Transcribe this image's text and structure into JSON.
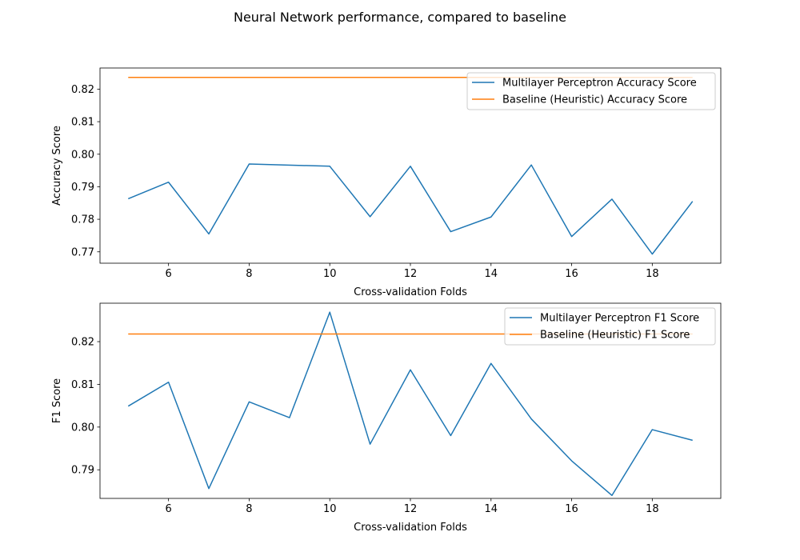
{
  "figure_title": "Neural Network performance, compared to baseline",
  "chart_data": [
    {
      "type": "line",
      "title": "",
      "xlabel": "Cross-validation Folds",
      "ylabel": "Accuracy Score",
      "xlim": [
        4.3,
        19.7
      ],
      "ylim": [
        0.7665,
        0.8265
      ],
      "xticks": [
        6,
        8,
        10,
        12,
        14,
        16,
        18
      ],
      "yticks": [
        0.77,
        0.78,
        0.79,
        0.8,
        0.81,
        0.82
      ],
      "ytick_labels": [
        "0.77",
        "0.78",
        "0.79",
        "0.80",
        "0.81",
        "0.82"
      ],
      "legend_position": "top-right",
      "grid": false,
      "x": [
        5,
        6,
        7,
        8,
        10,
        11,
        12,
        13,
        14,
        15,
        16,
        17,
        18,
        19
      ],
      "series": [
        {
          "name": "Multilayer Perceptron Accuracy Score",
          "color": "#1f77b4",
          "values": [
            0.7863,
            0.7914,
            0.7755,
            0.797,
            0.7963,
            0.7808,
            0.7963,
            0.7762,
            0.7807,
            0.7967,
            0.7747,
            0.7862,
            0.7693,
            0.7855
          ]
        },
        {
          "name": "Baseline (Heuristic) Accuracy Score",
          "color": "#ff7f0e",
          "values": [
            0.8236,
            0.8236,
            0.8236,
            0.8236,
            0.8236,
            0.8236,
            0.8236,
            0.8236,
            0.8236,
            0.8236,
            0.8236,
            0.8236,
            0.8236,
            0.8236
          ]
        }
      ]
    },
    {
      "type": "line",
      "title": "",
      "xlabel": "Cross-validation Folds",
      "ylabel": "F1 Score",
      "xlim": [
        4.3,
        19.7
      ],
      "ylim": [
        0.7833,
        0.829
      ],
      "xticks": [
        6,
        8,
        10,
        12,
        14,
        16,
        18
      ],
      "yticks": [
        0.79,
        0.8,
        0.81,
        0.82
      ],
      "ytick_labels": [
        "0.79",
        "0.80",
        "0.81",
        "0.82"
      ],
      "legend_position": "top-right",
      "grid": false,
      "x": [
        5,
        6,
        7,
        8,
        9,
        10,
        11,
        12,
        13,
        14,
        15,
        16,
        17,
        18,
        19
      ],
      "series": [
        {
          "name": "Multilayer Perceptron F1 Score",
          "color": "#1f77b4",
          "values": [
            0.8049,
            0.8105,
            0.7856,
            0.8059,
            0.8022,
            0.8269,
            0.796,
            0.8134,
            0.798,
            0.8149,
            0.8019,
            0.7921,
            0.784,
            0.7994,
            0.7969
          ]
        },
        {
          "name": "Baseline (Heuristic) F1 Score",
          "color": "#ff7f0e",
          "values": [
            0.8218,
            0.8218,
            0.8218,
            0.8218,
            0.8218,
            0.8218,
            0.8218,
            0.8218,
            0.8218,
            0.8218,
            0.8218,
            0.8218,
            0.8218,
            0.8218,
            0.8218
          ]
        }
      ]
    }
  ]
}
